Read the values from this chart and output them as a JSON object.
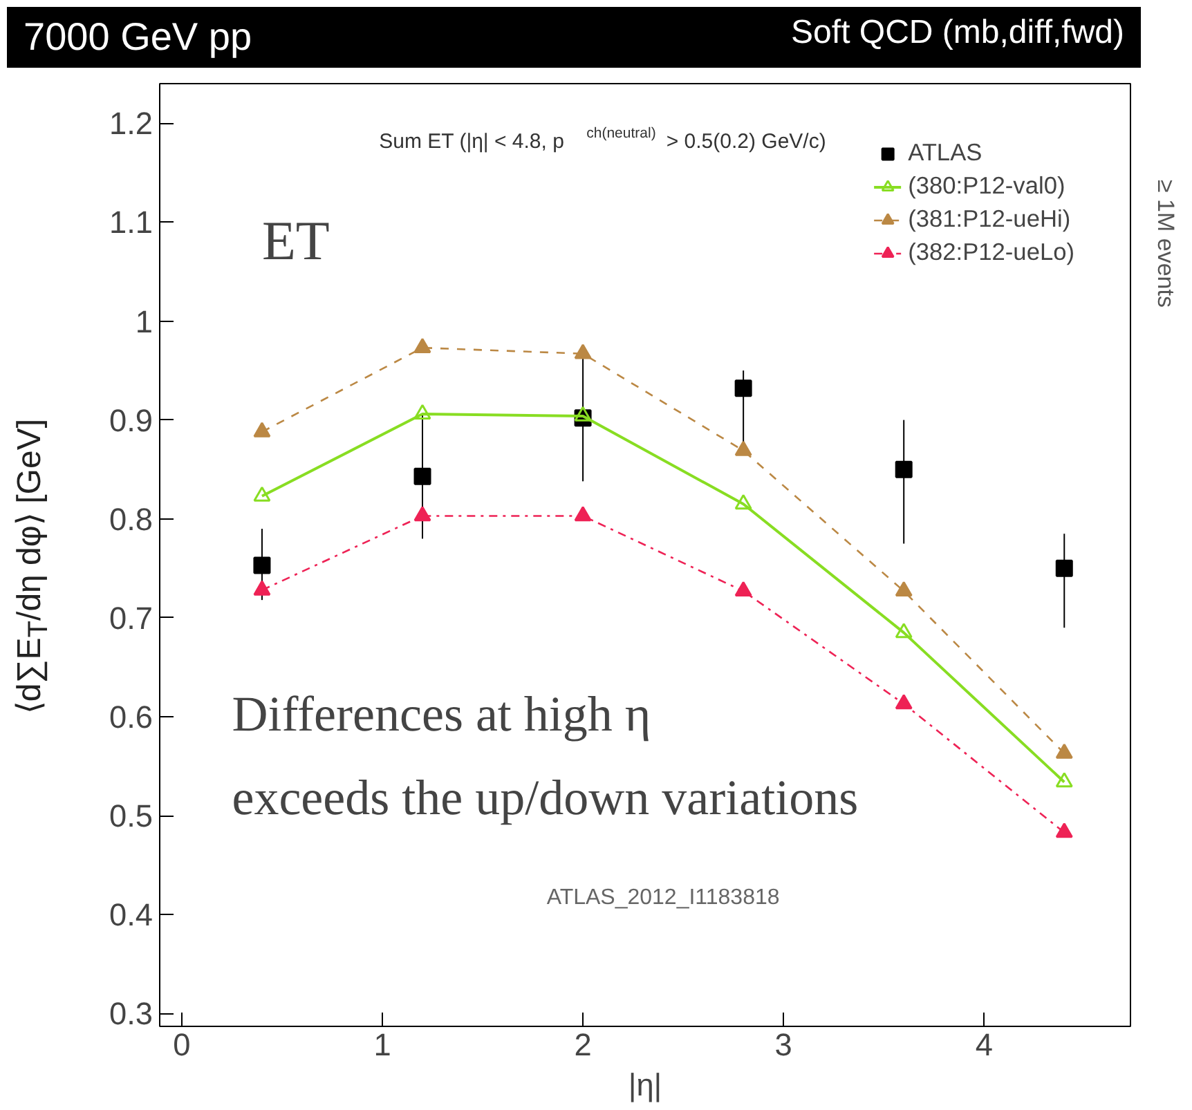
{
  "chart_data": {
    "type": "line",
    "title": "7000 GeV pp",
    "subtitle": "Sum ET (|η| < 4.8, p$^{ch(neutral)}$ > 0.5(0.2) GeV/c)",
    "xlabel": "|η|",
    "ylabel": "⟨d∑E$_{T}$/dη dφ⟩ [GeV]",
    "annotations": [
      "Soft QCD (mb,diff,fwd)",
      "ET",
      "Differences at high η",
      "exceeds the up/down variations",
      "ATLAS_2012_I1183818",
      "≥ 1M events"
    ],
    "x": [
      0.4,
      1.2,
      2.0,
      2.8,
      3.6,
      4.4
    ],
    "series": [
      {
        "name": "ATLAS",
        "color": "#000000",
        "type": "scatter",
        "marker": "square",
        "values": [
          0.753,
          0.843,
          0.902,
          0.932,
          0.85,
          0.75
        ],
        "errors": [
          [
            0.718,
            0.79
          ],
          [
            0.78,
            0.905
          ],
          [
            0.838,
            0.97
          ],
          [
            0.87,
            0.95
          ],
          [
            0.775,
            0.9
          ],
          [
            0.69,
            0.785
          ]
        ]
      },
      {
        "name": "(380:P12-val0)",
        "color": "#88dd22",
        "marker": "triangle_open",
        "line_style": "solid",
        "values": [
          0.823,
          0.906,
          0.904,
          0.815,
          0.685,
          0.534
        ]
      },
      {
        "name": "(381:P12-ueHi)",
        "color": "#bb8844",
        "marker": "triangle",
        "line_style": "dashed",
        "values": [
          0.888,
          0.973,
          0.967,
          0.869,
          0.727,
          0.563
        ]
      },
      {
        "name": "(382:P12-ueLo)",
        "color": "#ee2255",
        "marker": "triangle",
        "line_style": "dashdot",
        "values": [
          0.728,
          0.803,
          0.803,
          0.727,
          0.613,
          0.483
        ]
      }
    ],
    "xlim": [
      -0.11,
      4.73
    ],
    "ylim": [
      0.287,
      1.24
    ],
    "xticks": [
      0,
      1,
      2,
      3,
      4
    ],
    "yticks": [
      0.3,
      0.4,
      0.5,
      0.6,
      0.7,
      0.8,
      0.9,
      1,
      1.1,
      1.2
    ],
    "grid": false,
    "legend": "top right"
  }
}
